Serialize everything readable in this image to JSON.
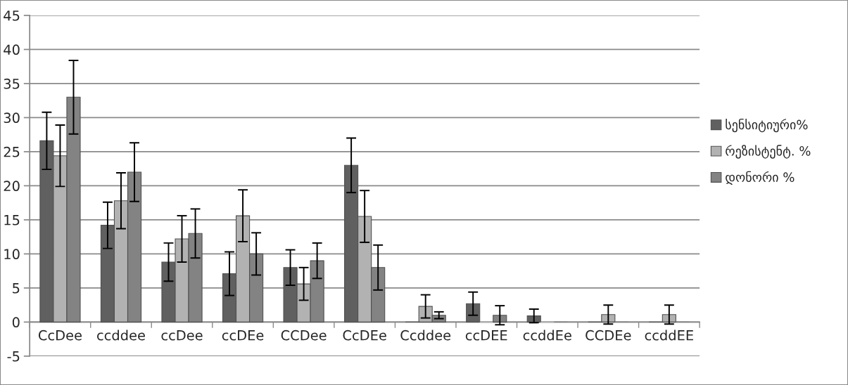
{
  "chart_data": {
    "type": "bar",
    "categories": [
      "CcDee",
      "ccddee",
      "ccDee",
      "ccDEe",
      "CCDee",
      "CcDEe",
      "Ccddee",
      "ccDEE",
      "ccddEe",
      "CCDEe",
      "ccddEE"
    ],
    "series": [
      {
        "name": "სენსიტიური%",
        "color": "#606060",
        "values": [
          26.6,
          14.2,
          8.8,
          7.1,
          8,
          23,
          0,
          2.7,
          0.9,
          0,
          0
        ],
        "errors": [
          4.2,
          3.4,
          2.8,
          3.2,
          2.6,
          4,
          null,
          1.7,
          1,
          null,
          null
        ]
      },
      {
        "name": "რეზისტენტ. %",
        "color": "#b2b2b2",
        "values": [
          24.4,
          17.8,
          12.2,
          15.6,
          5.6,
          15.5,
          2.3,
          0,
          0,
          1.1,
          1.1
        ],
        "errors": [
          4.5,
          4.1,
          3.4,
          3.8,
          2.4,
          3.8,
          1.7,
          null,
          null,
          1.4,
          1.4
        ]
      },
      {
        "name": "დონორი %",
        "color": "#838383",
        "values": [
          33,
          22,
          13,
          10,
          9,
          8,
          1,
          1,
          0,
          0,
          0
        ],
        "errors": [
          5.4,
          4.3,
          3.6,
          3.1,
          2.6,
          3.3,
          0.5,
          1.4,
          null,
          null,
          null
        ]
      }
    ],
    "ylim": [
      -5,
      45
    ],
    "yticks": [
      -5,
      0,
      5,
      10,
      15,
      20,
      25,
      30,
      35,
      40,
      45
    ],
    "grid": "y",
    "legend": "right"
  }
}
